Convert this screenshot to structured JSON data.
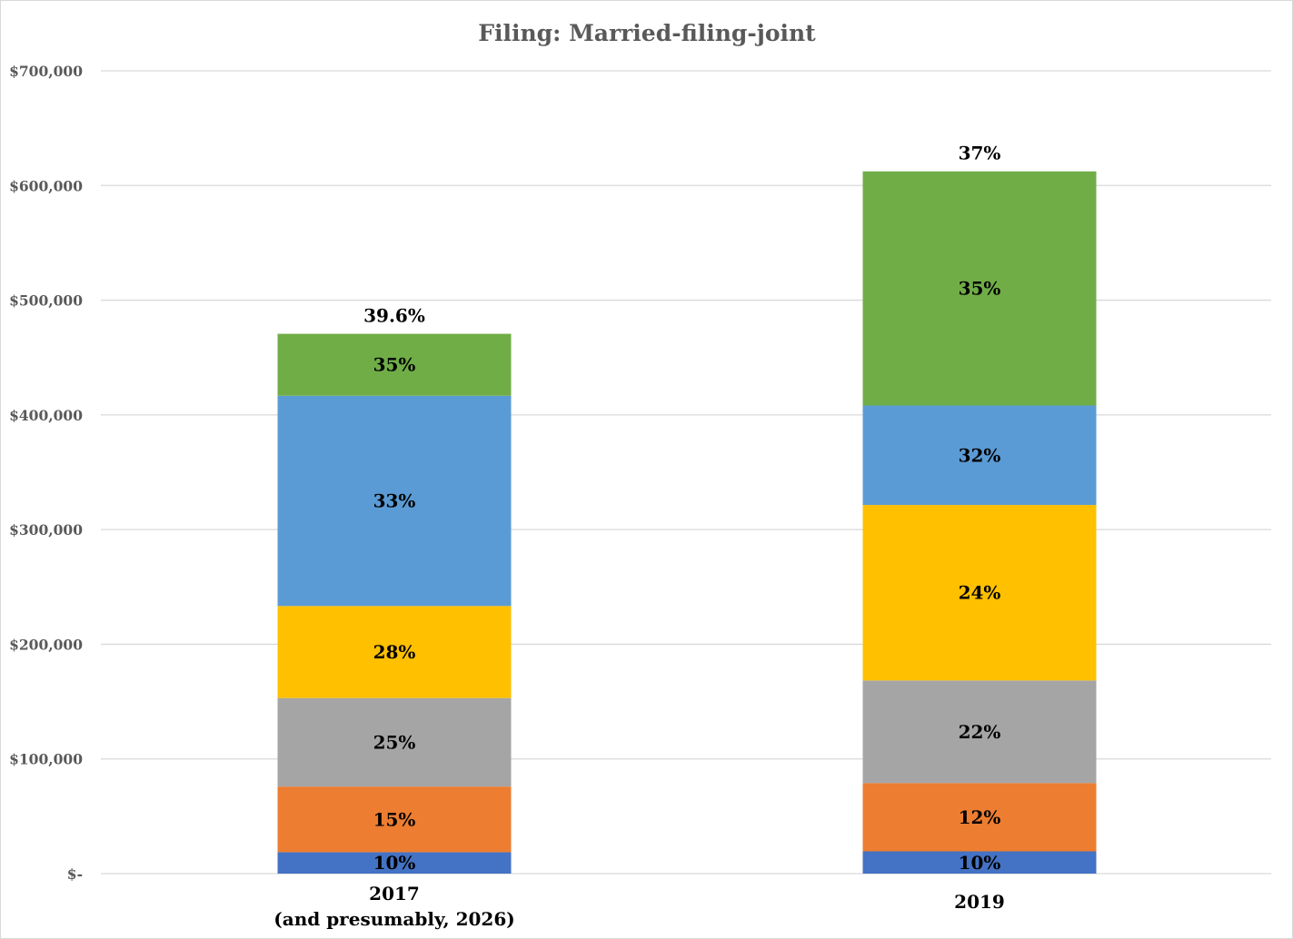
{
  "chart_data": {
    "type": "bar",
    "stacked": true,
    "title": "Filing: Married-filing-joint",
    "xlabel": "",
    "ylabel": "",
    "ylim": [
      0,
      700000
    ],
    "yticks": [
      0,
      100000,
      200000,
      300000,
      400000,
      500000,
      600000,
      700000
    ],
    "ytick_labels": [
      "$-",
      "$100,000",
      "$200,000",
      "$300,000",
      "$400,000",
      "$500,000",
      "$600,000",
      "$700,000"
    ],
    "grid": true,
    "legend": "none",
    "categories": [
      {
        "line1": "2017",
        "line2": "(and presumably, 2026)"
      },
      {
        "line1": "2019",
        "line2": ""
      }
    ],
    "stacks": [
      {
        "top_label": "39.6%",
        "segments": [
          {
            "label": "10%",
            "from": 0,
            "to": 18650,
            "color": "#4472c4"
          },
          {
            "label": "15%",
            "from": 18650,
            "to": 75900,
            "color": "#ed7d31"
          },
          {
            "label": "25%",
            "from": 75900,
            "to": 153100,
            "color": "#a5a5a5"
          },
          {
            "label": "28%",
            "from": 153100,
            "to": 233350,
            "color": "#ffc000"
          },
          {
            "label": "33%",
            "from": 233350,
            "to": 416700,
            "color": "#5b9bd5"
          },
          {
            "label": "35%",
            "from": 416700,
            "to": 470700,
            "color": "#70ad47"
          }
        ]
      },
      {
        "top_label": "37%",
        "segments": [
          {
            "label": "10%",
            "from": 0,
            "to": 19400,
            "color": "#4472c4"
          },
          {
            "label": "12%",
            "from": 19400,
            "to": 78950,
            "color": "#ed7d31"
          },
          {
            "label": "22%",
            "from": 78950,
            "to": 168400,
            "color": "#a5a5a5"
          },
          {
            "label": "24%",
            "from": 168400,
            "to": 321450,
            "color": "#ffc000"
          },
          {
            "label": "32%",
            "from": 321450,
            "to": 408200,
            "color": "#5b9bd5"
          },
          {
            "label": "35%",
            "from": 408200,
            "to": 612350,
            "color": "#70ad47"
          }
        ]
      }
    ]
  }
}
